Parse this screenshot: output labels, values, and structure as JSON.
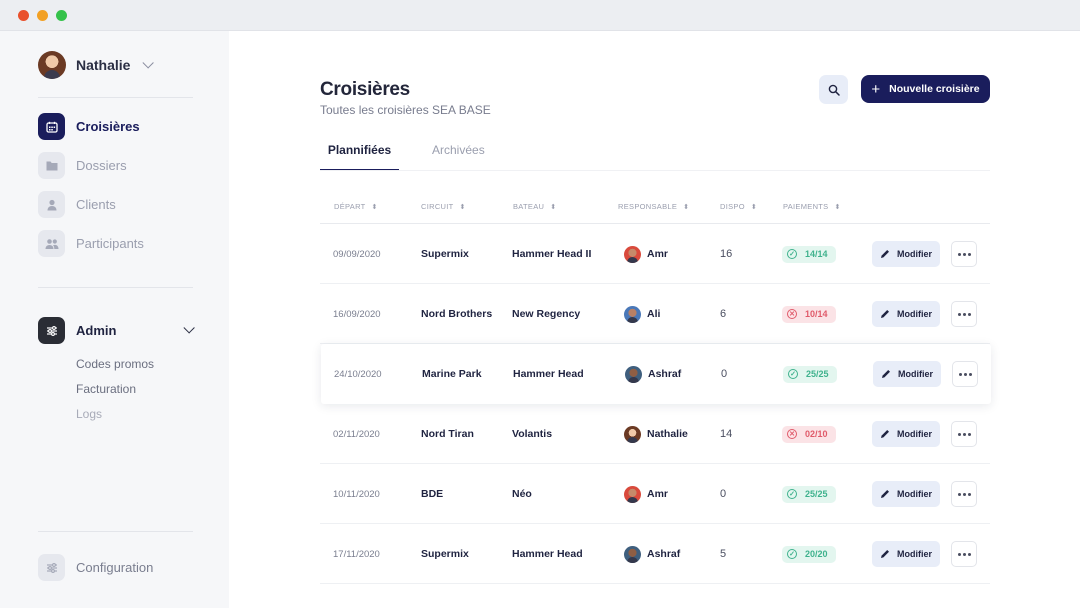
{
  "window": {
    "controls": [
      "close",
      "minimize",
      "maximize"
    ]
  },
  "sidebar": {
    "user": {
      "name": "Nathalie"
    },
    "nav": [
      {
        "label": "Croisières",
        "icon": "calendar-icon",
        "active": true
      },
      {
        "label": "Dossiers",
        "icon": "folder-icon",
        "active": false
      },
      {
        "label": "Clients",
        "icon": "user-icon",
        "active": false
      },
      {
        "label": "Participants",
        "icon": "users-icon",
        "active": false
      }
    ],
    "admin": {
      "label": "Admin",
      "icon": "sliders-icon",
      "items": [
        "Codes promos",
        "Facturation",
        "Logs"
      ]
    },
    "configuration": {
      "label": "Configuration",
      "icon": "sliders-icon"
    }
  },
  "header": {
    "title": "Croisières",
    "subtitle": "Toutes les croisières SEA BASE",
    "new_button": "Nouvelle croisière"
  },
  "tabs": [
    {
      "label": "Plannifiées",
      "active": true
    },
    {
      "label": "Archivées",
      "active": false
    }
  ],
  "table": {
    "columns": [
      "DÉPART",
      "CIRCUIT",
      "BATEAU",
      "RESPONSABLE",
      "DISPO",
      "PAIEMENTS"
    ],
    "edit_label": "Modifier",
    "rows": [
      {
        "depart": "09/09/2020",
        "circuit": "Supermix",
        "bateau": "Hammer Head II",
        "responsable": "Amr",
        "dispo": "16",
        "paiements": "14/14",
        "status": "ok"
      },
      {
        "depart": "16/09/2020",
        "circuit": "Nord Brothers",
        "bateau": "New Regency",
        "responsable": "Ali",
        "dispo": "6",
        "paiements": "10/14",
        "status": "ko"
      },
      {
        "depart": "24/10/2020",
        "circuit": "Marine Park",
        "bateau": "Hammer Head",
        "responsable": "Ashraf",
        "dispo": "0",
        "paiements": "25/25",
        "status": "ok"
      },
      {
        "depart": "02/11/2020",
        "circuit": "Nord Tiran",
        "bateau": "Volantis",
        "responsable": "Nathalie",
        "dispo": "14",
        "paiements": "02/10",
        "status": "ko"
      },
      {
        "depart": "10/11/2020",
        "circuit": "BDE",
        "bateau": "Néo",
        "responsable": "Amr",
        "dispo": "0",
        "paiements": "25/25",
        "status": "ok"
      },
      {
        "depart": "17/11/2020",
        "circuit": "Supermix",
        "bateau": "Hammer Head",
        "responsable": "Ashraf",
        "dispo": "5",
        "paiements": "20/20",
        "status": "ok"
      }
    ]
  },
  "colors": {
    "primary": "#1a1d5c",
    "success": "#3fb28d",
    "danger": "#e05a6a",
    "sidebar_bg": "#f6f7f9"
  }
}
